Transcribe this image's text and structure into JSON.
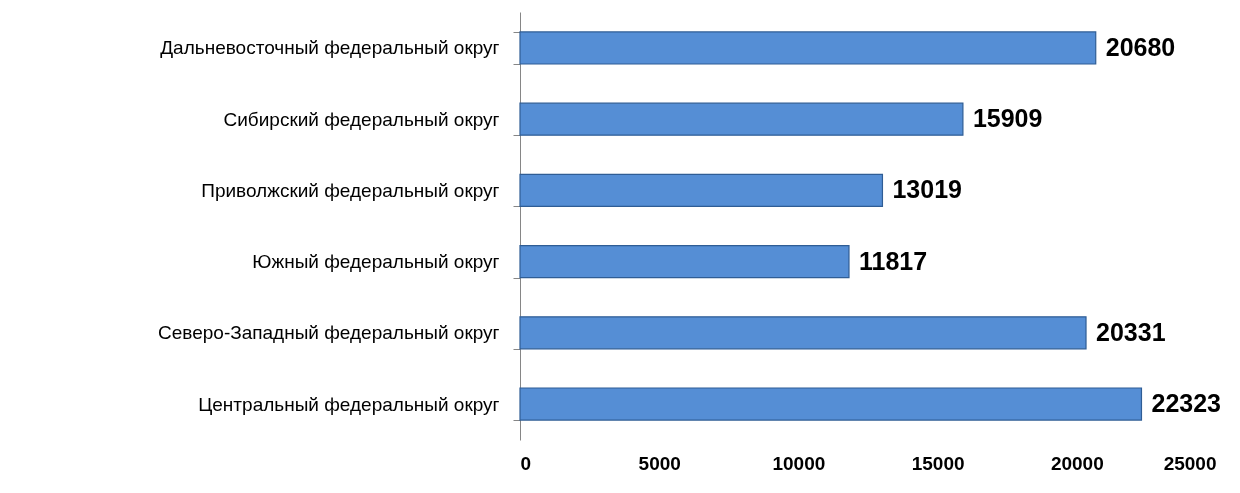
{
  "chart_data": {
    "type": "bar",
    "orientation": "horizontal",
    "categories": [
      "Дальневосточный  федеральный округ",
      "Сибирский  федеральный округ",
      "Приволжский  федеральный округ",
      "Южный  федеральный округ",
      "Северо-Западный федеральный округ",
      "Центральный федеральный округ"
    ],
    "values": [
      20680,
      15909,
      13019,
      11817,
      20331,
      22323
    ],
    "color": "#558ed5",
    "xlim": [
      0,
      25000
    ],
    "xticks": [
      0,
      5000,
      10000,
      15000,
      20000,
      25000
    ],
    "data_labels": true
  }
}
